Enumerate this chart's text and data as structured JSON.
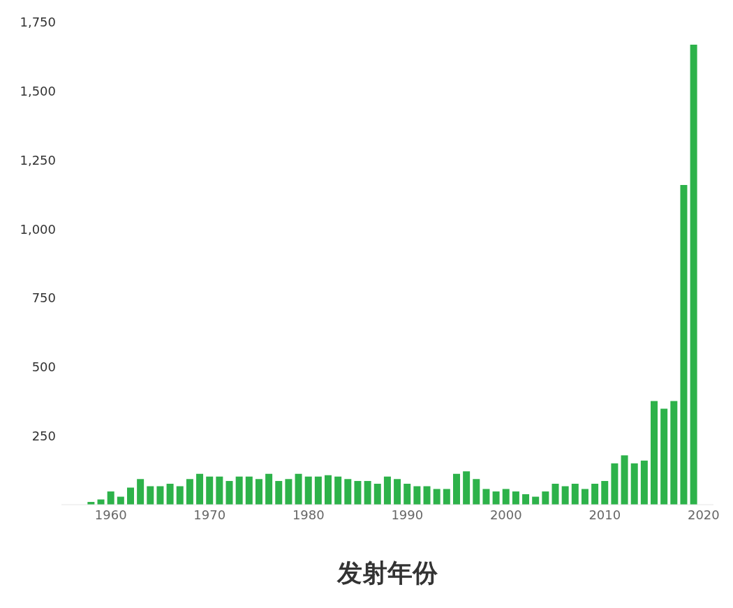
{
  "chart_data": {
    "type": "bar",
    "xlabel": "发射年份",
    "color": "#2db24a",
    "x": [
      1958,
      1959,
      1960,
      1961,
      1962,
      1963,
      1964,
      1965,
      1966,
      1967,
      1968,
      1969,
      1970,
      1971,
      1972,
      1973,
      1974,
      1975,
      1976,
      1977,
      1978,
      1979,
      1980,
      1981,
      1982,
      1983,
      1984,
      1985,
      1986,
      1987,
      1988,
      1989,
      1990,
      1991,
      1992,
      1993,
      1994,
      1995,
      1996,
      1997,
      1998,
      1999,
      2000,
      2001,
      2002,
      2003,
      2004,
      2005,
      2006,
      2007,
      2008,
      2009,
      2010,
      2011,
      2012,
      2013,
      2014,
      2015,
      2016,
      2017,
      2018,
      2019
    ],
    "values": [
      10,
      19,
      48,
      29,
      62,
      93,
      67,
      67,
      76,
      67,
      93,
      112,
      102,
      102,
      86,
      102,
      102,
      93,
      112,
      86,
      93,
      112,
      102,
      102,
      107,
      102,
      93,
      86,
      86,
      76,
      102,
      93,
      76,
      67,
      67,
      57,
      57,
      112,
      121,
      93,
      57,
      48,
      57,
      48,
      38,
      29,
      48,
      76,
      67,
      76,
      57,
      76,
      86,
      150,
      179,
      150,
      160,
      376,
      348,
      376,
      1160,
      1669
    ],
    "xlim": [
      1955,
      2021
    ],
    "xticks": [
      1960,
      1970,
      1980,
      1990,
      2000,
      2010,
      2020
    ],
    "ylim": [
      0,
      1750
    ],
    "yticks": [
      {
        "value": 250,
        "label": "250"
      },
      {
        "value": 500,
        "label": "500"
      },
      {
        "value": 750,
        "label": "750"
      },
      {
        "value": 1000,
        "label": "1,000"
      },
      {
        "value": 1250,
        "label": "1,250"
      },
      {
        "value": 1500,
        "label": "1,500"
      },
      {
        "value": 1750,
        "label": "1,750"
      }
    ],
    "grid": false,
    "legend": false
  }
}
